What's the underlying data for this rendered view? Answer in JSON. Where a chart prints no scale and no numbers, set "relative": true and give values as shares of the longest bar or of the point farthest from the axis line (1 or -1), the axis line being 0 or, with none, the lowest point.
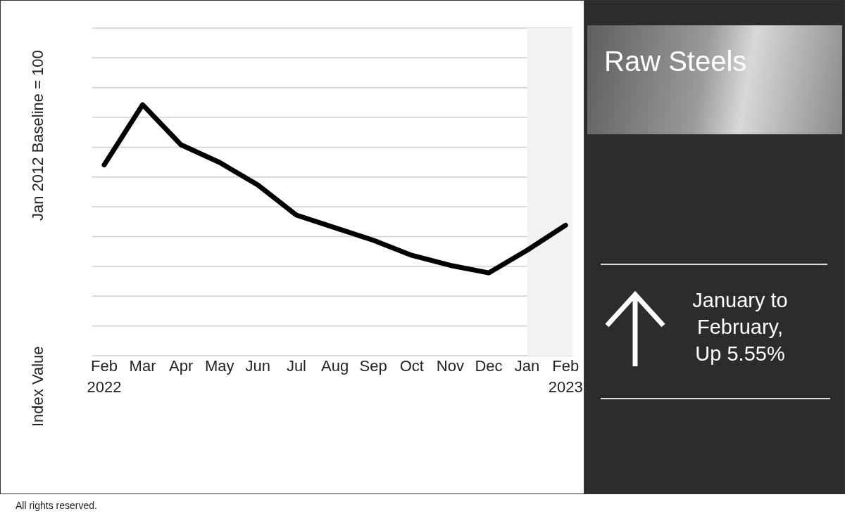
{
  "chart_data": {
    "type": "line",
    "title": "Raw Steels",
    "ylabel": "Index Value",
    "relative": true,
    "categories": [
      "Feb 2022",
      "Mar",
      "Apr",
      "May",
      "Jun",
      "Jul",
      "Aug",
      "Sep",
      "Oct",
      "Nov",
      "Dec",
      "Jan",
      "Feb 2023"
    ],
    "series": [
      {
        "color": "#000000",
        "values": [
          0.76,
          1.0,
          0.84,
          0.77,
          0.68,
          0.56,
          0.51,
          0.46,
          0.4,
          0.36,
          0.33,
          0.42,
          0.52
        ]
      }
    ],
    "bands": [
      {
        "axis": "x",
        "from": "Jan",
        "to": "Feb 2023",
        "color": "#f1f3f1"
      }
    ],
    "grid": "y",
    "annotations": [
      "Jan 2012 Baseline = 100",
      "January to February, Up 5.55%",
      "All rights reserved."
    ]
  }
}
